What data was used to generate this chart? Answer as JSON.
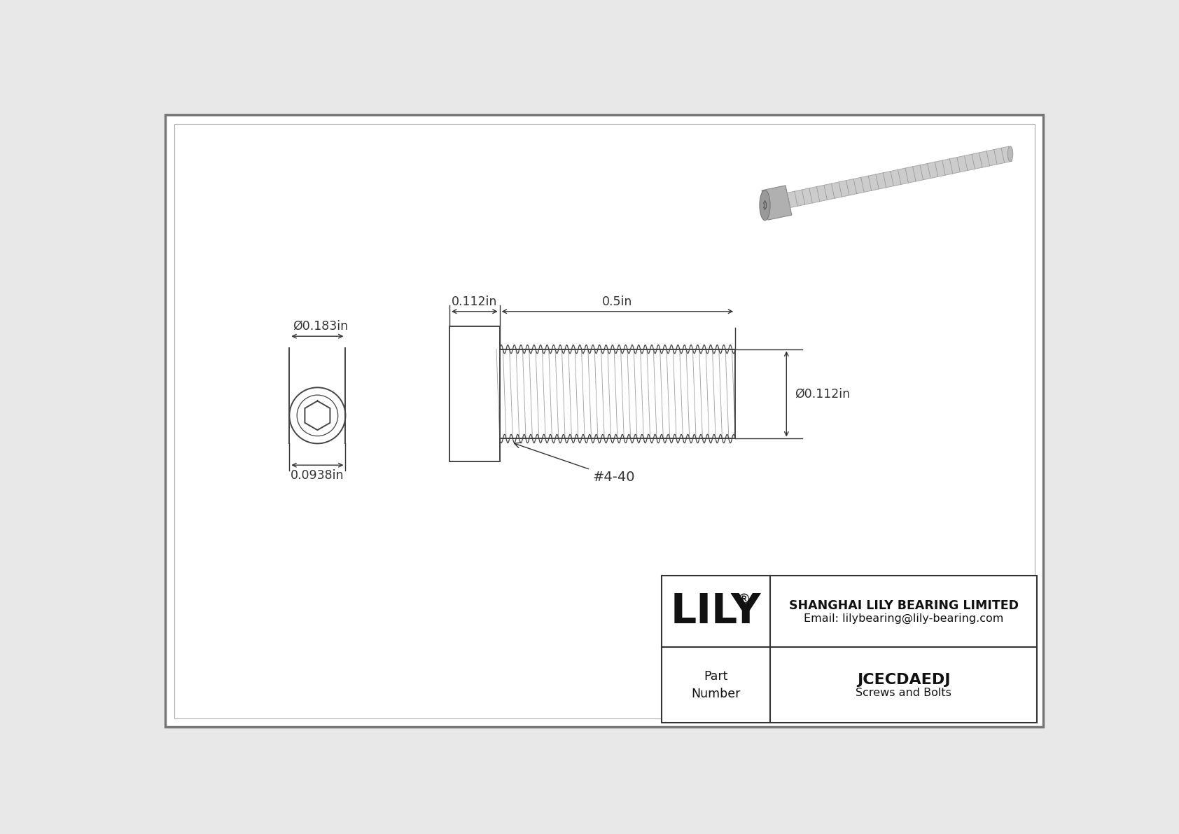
{
  "bg_color": "#e8e8e8",
  "page_color": "#ffffff",
  "line_color": "#444444",
  "dim_color": "#333333",
  "dim_head_width": "Ø0.183in",
  "dim_head_height": "0.0938in",
  "dim_thread_dia": "Ø0.112in",
  "dim_head_len": "0.112in",
  "dim_thread_len": "0.5in",
  "dim_thread_label": "#4-40",
  "company": "SHANGHAI LILY BEARING LIMITED",
  "email": "Email: lilybearing@lily-bearing.com",
  "part_label": "Part\nNumber",
  "part_number": "JCECDAEDJ",
  "part_type": "Screws and Bolts"
}
